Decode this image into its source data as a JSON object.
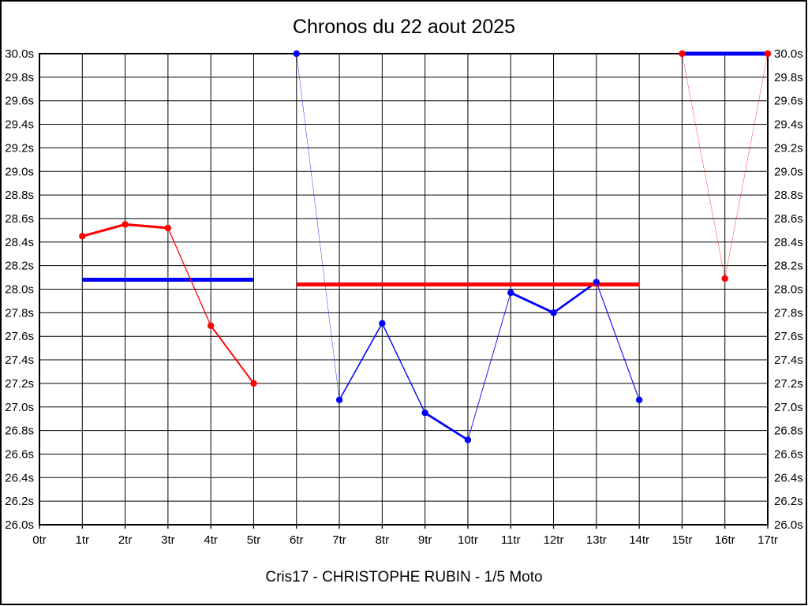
{
  "page": {
    "title": "Chronos du 22 aout 2025",
    "footer": "Cris17 - CHRISTOPHE RUBIN - 1/5 Moto"
  },
  "chart_data": {
    "type": "line",
    "title": "Chronos du 22 aout 2025",
    "bottom_annotation": "Cris17 - CHRISTOPHE RUBIN - 1/5 Moto",
    "xlabel": "",
    "ylabel": "",
    "x_unit": "tr",
    "y_unit": "s",
    "x_range": [
      0,
      17
    ],
    "y_range": [
      26.0,
      30.0
    ],
    "y_tick_step": 0.2,
    "grid": true,
    "legend": "none",
    "y_axis_labels_both_sides": true,
    "x_ticks": [
      "0tr",
      "1tr",
      "2tr",
      "3tr",
      "4tr",
      "5tr",
      "6tr",
      "7tr",
      "8tr",
      "9tr",
      "10tr",
      "11tr",
      "12tr",
      "13tr",
      "14tr",
      "15tr",
      "16tr",
      "17tr"
    ],
    "y_ticks": [
      "30.0s",
      "29.8s",
      "29.6s",
      "29.4s",
      "29.2s",
      "29.0s",
      "28.8s",
      "28.6s",
      "28.4s",
      "28.2s",
      "28.0s",
      "27.8s",
      "27.6s",
      "27.4s",
      "27.2s",
      "27.0s",
      "26.8s",
      "26.6s",
      "26.4s",
      "26.2s",
      "26.0s"
    ],
    "colors": {
      "red": "#ff0000",
      "blue": "#0000ff",
      "grid": "#000000",
      "text": "#000000",
      "background": "#ffffff"
    },
    "marker_radius": 4.2,
    "series": [
      {
        "name": "run1-average-line",
        "color": "blue",
        "markers": false,
        "vertical_thickness": 5,
        "points": [
          [
            1,
            28.08
          ],
          [
            5,
            28.08
          ]
        ]
      },
      {
        "name": "run1-lap-times",
        "color": "red",
        "markers": true,
        "vertical_thickness": 3.2,
        "points": [
          [
            1,
            28.45
          ],
          [
            2,
            28.55
          ],
          [
            3,
            28.52
          ],
          [
            4,
            27.69
          ],
          [
            5,
            27.2
          ]
        ]
      },
      {
        "name": "run2-lap-times",
        "color": "blue",
        "markers": true,
        "vertical_thickness": 3.2,
        "points": [
          [
            6,
            30.0
          ],
          [
            7,
            27.06
          ],
          [
            8,
            27.71
          ],
          [
            9,
            26.95
          ],
          [
            10,
            26.72
          ],
          [
            11,
            27.97
          ],
          [
            12,
            27.8
          ],
          [
            13,
            28.06
          ],
          [
            14,
            27.06
          ]
        ]
      },
      {
        "name": "run2-average-line",
        "color": "red",
        "markers": false,
        "vertical_thickness": 5,
        "points": [
          [
            6,
            28.04
          ],
          [
            14,
            28.04
          ]
        ]
      },
      {
        "name": "run3-lap-times",
        "color": "red",
        "markers": true,
        "vertical_thickness": 2,
        "points": [
          [
            15,
            30.0
          ],
          [
            16,
            28.09
          ],
          [
            17,
            30.0
          ]
        ]
      },
      {
        "name": "run3-average-line",
        "color": "blue",
        "markers": false,
        "vertical_thickness": 5,
        "points": [
          [
            15,
            30.0
          ],
          [
            17,
            30.0
          ]
        ]
      }
    ]
  }
}
